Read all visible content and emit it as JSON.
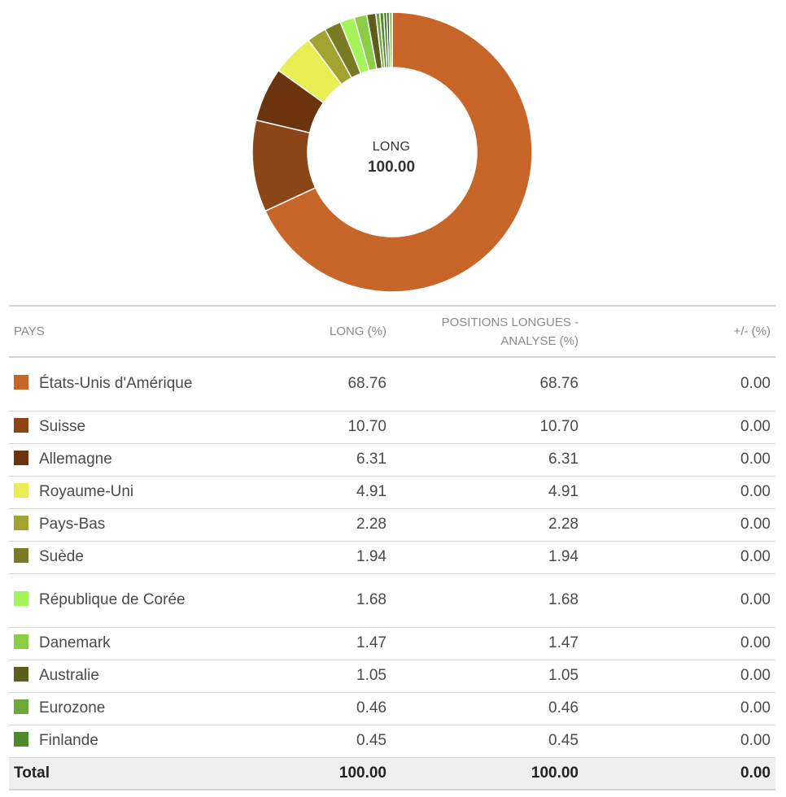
{
  "center": {
    "label": "LONG",
    "value": "100.00"
  },
  "table": {
    "headers": {
      "pays": "PAYS",
      "long": "LONG (%)",
      "positions": "POSITIONS LONGUES - ANALYSE (%)",
      "change": "+/- (%)"
    },
    "rows": [
      {
        "name": "États-Unis d'Amérique",
        "long": "68.76",
        "positions": "68.76",
        "change": "0.00",
        "color": "#c8662a"
      },
      {
        "name": "Suisse",
        "long": "10.70",
        "positions": "10.70",
        "change": "0.00",
        "color": "#8b4516"
      },
      {
        "name": "Allemagne",
        "long": "6.31",
        "positions": "6.31",
        "change": "0.00",
        "color": "#6b340f"
      },
      {
        "name": "Royaume-Uni",
        "long": "4.91",
        "positions": "4.91",
        "change": "0.00",
        "color": "#e9ee55"
      },
      {
        "name": "Pays-Bas",
        "long": "2.28",
        "positions": "2.28",
        "change": "0.00",
        "color": "#a3a332"
      },
      {
        "name": "Suède",
        "long": "1.94",
        "positions": "1.94",
        "change": "0.00",
        "color": "#7a7a24"
      },
      {
        "name": "République de Corée",
        "long": "1.68",
        "positions": "1.68",
        "change": "0.00",
        "color": "#a3f35a"
      },
      {
        "name": "Danemark",
        "long": "1.47",
        "positions": "1.47",
        "change": "0.00",
        "color": "#8ccd48"
      },
      {
        "name": "Australie",
        "long": "1.05",
        "positions": "1.05",
        "change": "0.00",
        "color": "#5e5e1c"
      },
      {
        "name": "Eurozone",
        "long": "0.46",
        "positions": "0.46",
        "change": "0.00",
        "color": "#6fa83a"
      },
      {
        "name": "Finlande",
        "long": "0.45",
        "positions": "0.45",
        "change": "0.00",
        "color": "#4e8a2a"
      }
    ],
    "total": {
      "label": "Total",
      "long": "100.00",
      "positions": "100.00",
      "change": "0.00"
    }
  },
  "chart_data": {
    "type": "pie",
    "variant": "donut",
    "categories": [
      "États-Unis d'Amérique",
      "Suisse",
      "Allemagne",
      "Royaume-Uni",
      "Pays-Bas",
      "Suède",
      "République de Corée",
      "Danemark",
      "Australie",
      "Eurozone",
      "Finlande",
      "",
      "",
      ""
    ],
    "values": [
      68.76,
      10.7,
      6.31,
      4.91,
      2.28,
      1.94,
      1.68,
      1.47,
      1.05,
      0.46,
      0.45,
      0.35,
      0.3,
      0.34
    ],
    "colors": [
      "#c8662a",
      "#8b4516",
      "#6b340f",
      "#e9ee55",
      "#a3a332",
      "#7a7a24",
      "#a3f35a",
      "#8ccd48",
      "#5e5e1c",
      "#6fa83a",
      "#4e8a2a",
      "#3f6e20",
      "#2f5218",
      "#7fbf4a"
    ]
  }
}
